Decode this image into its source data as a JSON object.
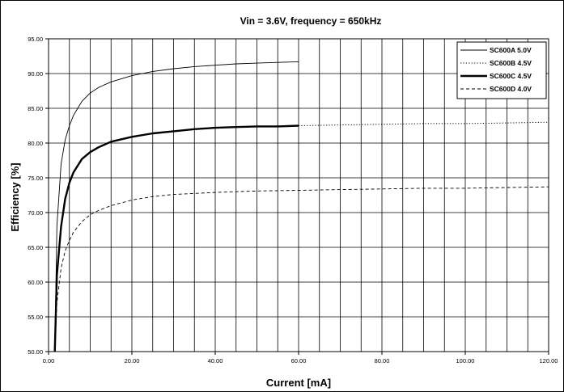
{
  "chart_data": {
    "type": "line",
    "title": "Vin = 3.6V, frequency = 650kHz",
    "xlabel": "Current [mA]",
    "ylabel": "Efficiency [%]",
    "xlim": [
      0,
      120
    ],
    "ylim": [
      50,
      95
    ],
    "x_major_step": 20,
    "x_grid_step": 5,
    "y_step": 5,
    "x_ticks": [
      "0.00",
      "20.00",
      "40.00",
      "60.00",
      "80.00",
      "100.00",
      "120.00"
    ],
    "y_ticks": [
      "50.00",
      "55.00",
      "60.00",
      "65.00",
      "70.00",
      "75.00",
      "80.00",
      "85.00",
      "90.00",
      "95.00"
    ],
    "grid": true,
    "legend_position": "top-right",
    "series": [
      {
        "name": "SC600A 5.0V",
        "style": "solid-thin",
        "x": [
          1.5,
          2,
          3,
          4,
          5,
          6,
          8,
          10,
          12,
          15,
          20,
          25,
          30,
          35,
          40,
          45,
          50,
          55,
          60
        ],
        "y": [
          50,
          68,
          77,
          80.5,
          82.5,
          84,
          86,
          87.2,
          88,
          88.8,
          89.7,
          90.3,
          90.7,
          91,
          91.2,
          91.4,
          91.5,
          91.6,
          91.7
        ]
      },
      {
        "name": "SC600B 4.5V",
        "style": "dotted",
        "x": [
          60,
          70,
          80,
          90,
          100,
          110,
          120
        ],
        "y": [
          82.5,
          82.6,
          82.7,
          82.8,
          82.8,
          82.9,
          83.0
        ]
      },
      {
        "name": "SC600C 4.5V",
        "style": "solid-thick",
        "x": [
          1.5,
          2,
          3,
          4,
          5,
          6,
          8,
          10,
          12,
          15,
          20,
          25,
          30,
          35,
          40,
          45,
          50,
          55,
          60
        ],
        "y": [
          50,
          61,
          68,
          72,
          74.3,
          75.8,
          77.7,
          78.7,
          79.4,
          80.2,
          80.9,
          81.4,
          81.7,
          82,
          82.2,
          82.3,
          82.4,
          82.4,
          82.5
        ]
      },
      {
        "name": "SC600D 4.0V",
        "style": "dashed",
        "x": [
          1.5,
          2,
          3,
          4,
          5,
          6,
          8,
          10,
          12,
          15,
          20,
          25,
          30,
          40,
          50,
          60,
          70,
          80,
          90,
          100,
          110,
          120
        ],
        "y": [
          50,
          57,
          62,
          64.5,
          66,
          67.2,
          68.7,
          69.7,
          70.3,
          71,
          71.8,
          72.3,
          72.6,
          72.9,
          73.1,
          73.2,
          73.3,
          73.4,
          73.5,
          73.5,
          73.6,
          73.7
        ]
      }
    ]
  }
}
